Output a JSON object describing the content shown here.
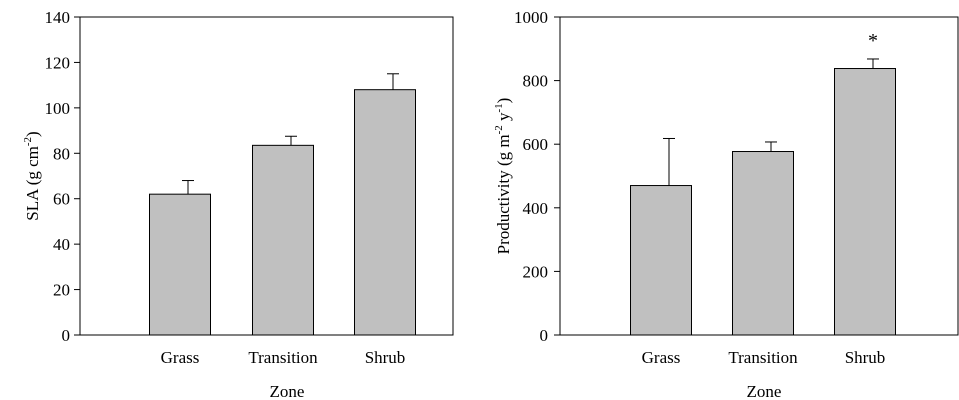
{
  "chart_data": [
    {
      "type": "bar",
      "categories": [
        "Grass",
        "Transition",
        "Shrub"
      ],
      "values": [
        62,
        83.5,
        108
      ],
      "errors": [
        6,
        4,
        7
      ],
      "xlabel": "Zone",
      "ylabel": {
        "base": "SLA (g cm",
        "sup1": "-2",
        "end": ")"
      },
      "ylim": [
        0,
        140
      ],
      "yticks": [
        0,
        20,
        40,
        60,
        80,
        100,
        120,
        140
      ],
      "bar_color": "#c0c0c0",
      "annotations": [
        "",
        "",
        ""
      ]
    },
    {
      "type": "bar",
      "categories": [
        "Grass",
        "Transition",
        "Shrub"
      ],
      "values": [
        470,
        577,
        838
      ],
      "errors": [
        148,
        30,
        30
      ],
      "xlabel": "Zone",
      "ylabel": {
        "base": "Productivity (g m",
        "sup1": "-2",
        "mid": " y",
        "sup2": "-1",
        "end": ")"
      },
      "ylim": [
        0,
        1000
      ],
      "yticks": [
        0,
        200,
        400,
        600,
        800,
        1000
      ],
      "bar_color": "#c0c0c0",
      "annotations": [
        "",
        "",
        "*"
      ]
    }
  ]
}
